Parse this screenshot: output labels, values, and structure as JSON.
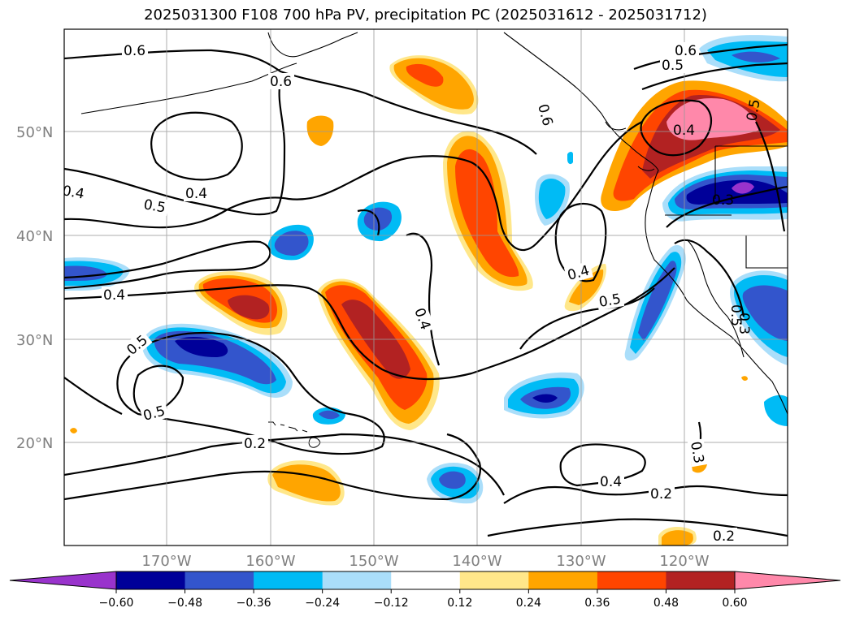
{
  "title": "2025031300 F108 700 hPa PV, precipitation PC (2025031612 - 2025031712)",
  "map": {
    "lon_labels": [
      "170°W",
      "160°W",
      "150°W",
      "140°W",
      "130°W",
      "120°W"
    ],
    "lat_labels": [
      "50°N",
      "40°N",
      "30°N",
      "20°N"
    ],
    "contour_labels": [
      "0.6",
      "0.6",
      "0.6",
      "0.5",
      "0.6",
      "0.4",
      "0.5",
      "0.4",
      "0.4",
      "0.5",
      "0.4",
      "0.5",
      "0.4",
      "0.5",
      "0.3",
      "0.5",
      "0.2",
      "0.2",
      "0.4",
      "0.3",
      "0.3",
      "0.2",
      "0.5",
      "0.4"
    ]
  },
  "colorbar": {
    "ticks": [
      "−0.60",
      "−0.48",
      "−0.36",
      "−0.24",
      "−0.12",
      "0.12",
      "0.24",
      "0.36",
      "0.48",
      "0.60"
    ],
    "colors": [
      "#9933cc",
      "#000099",
      "#3355cc",
      "#00bbf5",
      "#aadefa",
      "#ffffff",
      "#ffe78a",
      "#ffa500",
      "#ff4500",
      "#b22222",
      "#ff88aa"
    ]
  }
}
